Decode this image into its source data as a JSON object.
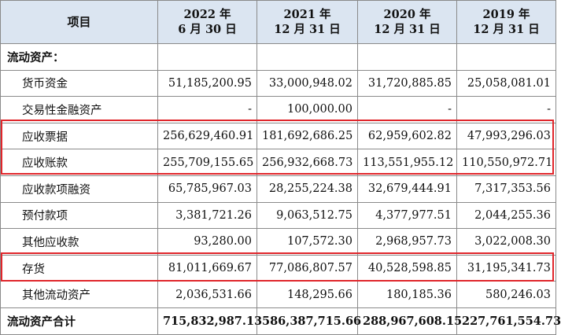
{
  "header": {
    "item": "项目",
    "periods": [
      {
        "line1": "2022 年",
        "line2": "6 月 30 日"
      },
      {
        "line1": "2021 年",
        "line2": "12 月 31 日"
      },
      {
        "line1": "2020 年",
        "line2": "12 月 31 日"
      },
      {
        "line1": "2019 年",
        "line2": "12 月 31 日"
      }
    ]
  },
  "rows": [
    {
      "label": "流动资产：",
      "values": [
        "",
        "",
        "",
        ""
      ]
    },
    {
      "label": "货币资金",
      "values": [
        "51,185,200.95",
        "33,000,948.02",
        "31,720,885.85",
        "25,058,081.01"
      ]
    },
    {
      "label": "交易性金融资产",
      "values": [
        "-",
        "100,000.00",
        "-",
        "-"
      ]
    },
    {
      "label": "应收票据",
      "values": [
        "256,629,460.91",
        "181,692,686.25",
        "62,959,602.82",
        "47,993,296.03"
      ]
    },
    {
      "label": "应收账款",
      "values": [
        "255,709,155.65",
        "256,932,668.73",
        "113,551,955.12",
        "110,550,972.71"
      ]
    },
    {
      "label": "应收款项融资",
      "values": [
        "65,785,967.03",
        "28,255,224.38",
        "32,679,444.91",
        "7,317,353.56"
      ]
    },
    {
      "label": "预付款项",
      "values": [
        "3,381,721.26",
        "9,063,512.75",
        "4,377,977.51",
        "2,044,255.36"
      ]
    },
    {
      "label": "其他应收款",
      "values": [
        "93,280.00",
        "107,572.30",
        "2,968,957.73",
        "3,022,008.30"
      ]
    },
    {
      "label": "存货",
      "values": [
        "81,011,669.67",
        "77,086,807.57",
        "40,528,598.85",
        "31,195,341.73"
      ]
    },
    {
      "label": "其他流动资产",
      "values": [
        "2,036,531.66",
        "148,295.66",
        "180,185.36",
        "580,246.03"
      ]
    },
    {
      "label": "流动资产合计",
      "values": [
        "715,832,987.13",
        "586,387,715.66",
        "288,967,608.15",
        "227,761,554.73"
      ]
    }
  ],
  "highlight_color": "#e0262b",
  "header_bg": "#dbe5f1"
}
